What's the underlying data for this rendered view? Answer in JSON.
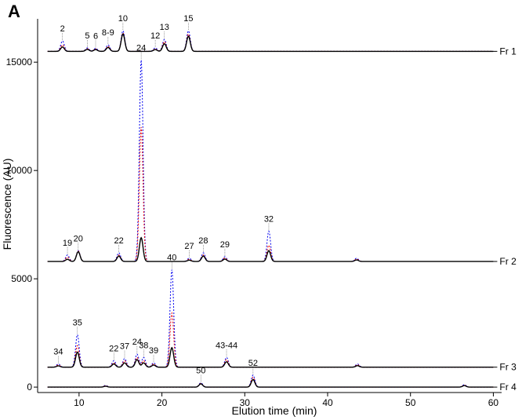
{
  "chart_data": {
    "type": "line",
    "panel_label": "A",
    "xlabel": "Elution time (min)",
    "ylabel": "Fluorescence (AU)",
    "xlim": [
      5,
      61
    ],
    "ylim": [
      -250,
      17000
    ],
    "x_ticks": [
      {
        "value": 10,
        "label": "10"
      },
      {
        "value": 20,
        "label": "20"
      },
      {
        "value": 30,
        "label": "30"
      },
      {
        "value": 40,
        "label": "40"
      },
      {
        "value": 50,
        "label": "50"
      },
      {
        "value": 60,
        "label": "60"
      }
    ],
    "y_ticks": [
      {
        "value": 0,
        "label": "0"
      },
      {
        "value": 5000,
        "label": "5000"
      },
      {
        "value": 10000,
        "label": "10000"
      },
      {
        "value": 15000,
        "label": "15000"
      }
    ],
    "grid": false,
    "legend": "none",
    "line_colors": [
      "#0000ee",
      "#ee0000",
      "#000000"
    ],
    "fractions": [
      {
        "name": "Fr 1",
        "baseline": 15500,
        "peaks": [
          {
            "label": "2",
            "x": 8.0,
            "heights": [
              480,
              300,
              200
            ]
          },
          {
            "label": "5",
            "x": 11.0,
            "heights": [
              160,
              120,
              90
            ]
          },
          {
            "label": "6",
            "x": 12.0,
            "heights": [
              140,
              110,
              80
            ]
          },
          {
            "label": "8-9",
            "x": 13.5,
            "heights": [
              300,
              230,
              180
            ]
          },
          {
            "label": "10",
            "x": 15.3,
            "heights": [
              950,
              850,
              800
            ]
          },
          {
            "label": "12",
            "x": 19.2,
            "heights": [
              160,
              110,
              80
            ]
          },
          {
            "label": "13",
            "x": 20.3,
            "heights": [
              550,
              450,
              350
            ]
          },
          {
            "label": "15",
            "x": 23.2,
            "heights": [
              950,
              800,
              700
            ]
          }
        ]
      },
      {
        "name": "Fr 2",
        "baseline": 5800,
        "peaks": [
          {
            "label": "19",
            "x": 8.6,
            "heights": [
              300,
              200,
              100
            ]
          },
          {
            "label": "20",
            "x": 9.9,
            "heights": [
              500,
              480,
              450
            ]
          },
          {
            "label": "22",
            "x": 14.8,
            "heights": [
              400,
              300,
              250
            ]
          },
          {
            "label": "24",
            "x": 17.5,
            "heights": [
              9300,
              6200,
              1100
            ]
          },
          {
            "label": "27",
            "x": 23.3,
            "heights": [
              150,
              100,
              60
            ]
          },
          {
            "label": "28",
            "x": 25.0,
            "heights": [
              400,
              300,
              250
            ]
          },
          {
            "label": "29",
            "x": 27.6,
            "heights": [
              220,
              160,
              110
            ]
          },
          {
            "label": "32",
            "x": 32.9,
            "heights": [
              1400,
              750,
              500
            ]
          },
          {
            "label": "",
            "x": 43.5,
            "heights": [
              150,
              110,
              70
            ]
          }
        ]
      },
      {
        "name": "Fr 3",
        "baseline": 920,
        "peaks": [
          {
            "label": "34",
            "x": 7.5,
            "heights": [
              150,
              100,
              60
            ]
          },
          {
            "label": "35",
            "x": 9.8,
            "heights": [
              1500,
              1000,
              700
            ]
          },
          {
            "label": "22",
            "x": 14.2,
            "heights": [
              300,
              200,
              150
            ]
          },
          {
            "label": "37",
            "x": 15.5,
            "heights": [
              400,
              300,
              200
            ]
          },
          {
            "label": "24",
            "x": 17.0,
            "heights": [
              600,
              450,
              350
            ]
          },
          {
            "label": "38",
            "x": 17.8,
            "heights": [
              450,
              300,
              200
            ]
          },
          {
            "label": "39",
            "x": 19.0,
            "heights": [
              200,
              150,
              100
            ]
          },
          {
            "label": "40",
            "x": 21.2,
            "heights": [
              4500,
              2500,
              900
            ]
          },
          {
            "label": "43-44",
            "x": 27.8,
            "heights": [
              450,
              350,
              250
            ]
          },
          {
            "label": "",
            "x": 43.6,
            "heights": [
              150,
              110,
              70
            ]
          }
        ]
      },
      {
        "name": "Fr 4",
        "baseline": 0,
        "peaks": [
          {
            "label": "",
            "x": 13.2,
            "heights": [
              80,
              60,
              40
            ]
          },
          {
            "label": "50",
            "x": 24.7,
            "heights": [
              200,
              170,
              150
            ]
          },
          {
            "label": "52",
            "x": 31.0,
            "heights": [
              550,
              450,
              350
            ]
          },
          {
            "label": "",
            "x": 56.5,
            "heights": [
              110,
              90,
              70
            ]
          }
        ]
      }
    ]
  }
}
